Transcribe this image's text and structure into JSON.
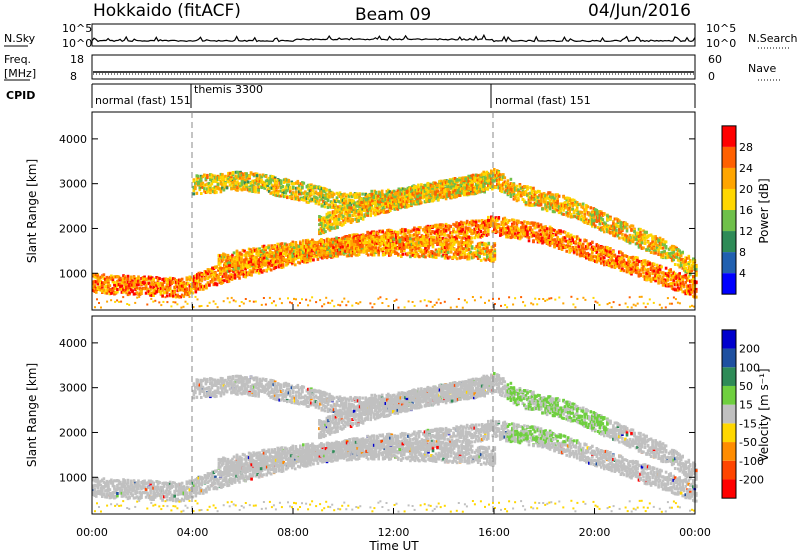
{
  "header": {
    "station": "Hokkaido (fitACF)",
    "beam": "Beam 09",
    "date": "04/Jun/2016"
  },
  "noise_panel": {
    "left_label": "N.Sky",
    "right_label": "N.Search",
    "left_ticks": [
      "10^5",
      "10^0"
    ],
    "right_ticks": [
      "10^5",
      "10^0"
    ]
  },
  "freq_panel": {
    "left_label_top": "Freq.",
    "left_label_unit": "[MHz]",
    "right_label": "Nave",
    "left_ticks": [
      "18",
      "8"
    ],
    "right_ticks": [
      "60",
      "0"
    ]
  },
  "cpid_panel": {
    "label": "CPID",
    "segments": [
      {
        "label": "normal (fast) 151",
        "start_hour": 0.0
      },
      {
        "label": "themis 3300",
        "start_hour": 3.99
      },
      {
        "label": "normal (fast) 151",
        "start_hour": 16.0
      }
    ]
  },
  "colors": {
    "scatter_gray": "#c0c0c0",
    "power_scale": [
      "#0000ff",
      "#2060b0",
      "#2e8b57",
      "#6fc04a",
      "#ffd700",
      "#ffa500",
      "#ff6000",
      "#ff0000"
    ],
    "velocity_scale": [
      "#0000cd",
      "#1e50a0",
      "#2e8b57",
      "#6fcf3f",
      "#c0c0c0",
      "#ffd700",
      "#ff8c00",
      "#ff4500",
      "#ff0000"
    ]
  },
  "chart_data": [
    {
      "type": "heatmap",
      "name": "power",
      "xlabel": "",
      "ylabel": "Slant Range [km]",
      "xlim_hours": [
        0,
        24
      ],
      "ylim_km": [
        180,
        4600
      ],
      "yticks": [
        1000,
        2000,
        3000,
        4000
      ],
      "colorbar": {
        "label": "Power [dB]",
        "ticks": [
          4,
          8,
          12,
          16,
          20,
          24,
          28
        ],
        "range": [
          0,
          32
        ]
      },
      "vertical_markers_hours": [
        4,
        16
      ],
      "echo_bands": [
        {
          "t": [
            0,
            2,
            3.5,
            5,
            7,
            9,
            11,
            13,
            15,
            16,
            18,
            20,
            22,
            24
          ],
          "r": [
            800,
            750,
            700,
            1000,
            1300,
            1550,
            1750,
            1850,
            2000,
            2100,
            1900,
            1500,
            1100,
            700
          ],
          "dB": 24
        },
        {
          "t": [
            5,
            7,
            9,
            11,
            13,
            15,
            16
          ],
          "r": [
            1250,
            1450,
            1600,
            1650,
            1600,
            1550,
            1500
          ],
          "dB": 22
        },
        {
          "t": [
            4,
            6,
            8,
            10,
            12,
            14,
            16
          ],
          "r": [
            3000,
            3100,
            2900,
            2600,
            2700,
            2900,
            3100
          ],
          "dB": 18
        },
        {
          "t": [
            9,
            11,
            13,
            15,
            16,
            17,
            19,
            21,
            23,
            24
          ],
          "r": [
            2100,
            2500,
            2800,
            3000,
            3150,
            2800,
            2500,
            2000,
            1500,
            1100
          ],
          "dB": 20
        }
      ]
    },
    {
      "type": "heatmap",
      "name": "velocity",
      "xlabel": "Time UT",
      "ylabel": "Slant Range [km]",
      "xlim_hours": [
        0,
        24
      ],
      "ylim_km": [
        180,
        4600
      ],
      "yticks": [
        1000,
        2000,
        3000,
        4000
      ],
      "xticks": [
        "00:00",
        "04:00",
        "08:00",
        "12:00",
        "16:00",
        "20:00",
        "00:00"
      ],
      "colorbar": {
        "label": "Velocity [m s⁻¹]",
        "ticks": [
          200,
          100,
          50,
          15,
          -15,
          -50,
          -100,
          -200
        ],
        "range": [
          -250,
          250
        ]
      },
      "vertical_markers_hours": [
        4,
        16
      ],
      "note": "mostly ground scatter (gray); green patches near 17-20 UT at 2000-3200 km"
    }
  ]
}
